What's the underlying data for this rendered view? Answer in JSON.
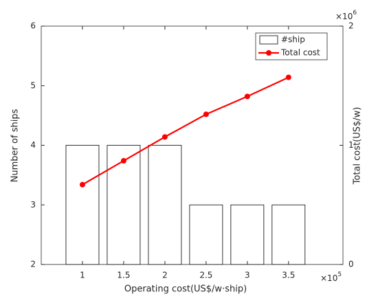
{
  "chart_data": {
    "type": "bar",
    "x_label": "Operating cost(US$/w·ship)",
    "y_label": "Number of ships",
    "y2_label": "Total cost(US$/w)",
    "x_exponent": {
      "base": "×10",
      "power": "5"
    },
    "y2_exponent": {
      "base": "×10",
      "power": "6"
    },
    "x": [
      1,
      1.5,
      2,
      2.5,
      3,
      3.5
    ],
    "xlim": [
      0.5,
      4.16
    ],
    "xticks": [
      1,
      1.5,
      2,
      2.5,
      3,
      3.5
    ],
    "ylim": [
      2,
      6
    ],
    "yticks": [
      2,
      3,
      4,
      5,
      6
    ],
    "y2lim": [
      0,
      2
    ],
    "y2ticks": [
      0,
      1,
      2
    ],
    "legend": "upper right",
    "series": [
      {
        "name": "#ship",
        "type": "bar",
        "color": "#ffffff",
        "values": [
          4,
          4,
          4,
          3,
          3,
          3
        ]
      },
      {
        "name": "Total cost",
        "type": "line",
        "axis": "y2",
        "color": "#ff0000",
        "values": [
          0.67,
          0.87,
          1.07,
          1.26,
          1.41,
          1.57
        ]
      }
    ]
  }
}
